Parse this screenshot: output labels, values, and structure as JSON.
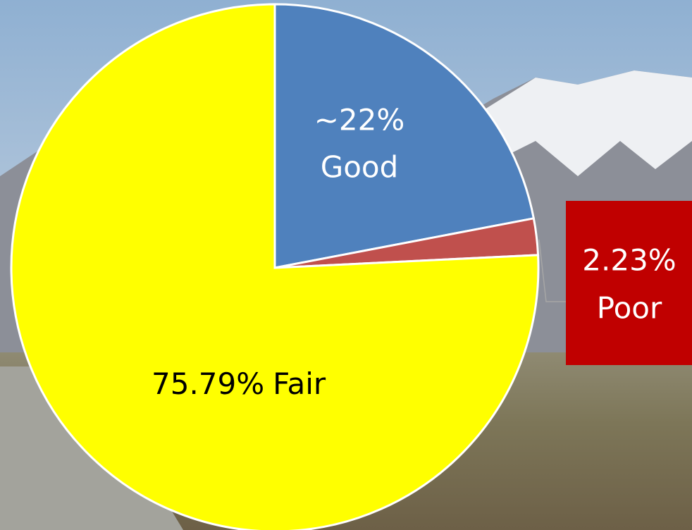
{
  "chart_data": {
    "type": "pie",
    "categories": [
      "Good",
      "Poor",
      "Fair"
    ],
    "values": [
      22,
      2.23,
      75.79
    ],
    "value_labels": [
      "~22%",
      "2.23%",
      "75.79%"
    ],
    "colors": [
      "#4f81bd",
      "#c0504d",
      "#ffff00"
    ]
  }
}
